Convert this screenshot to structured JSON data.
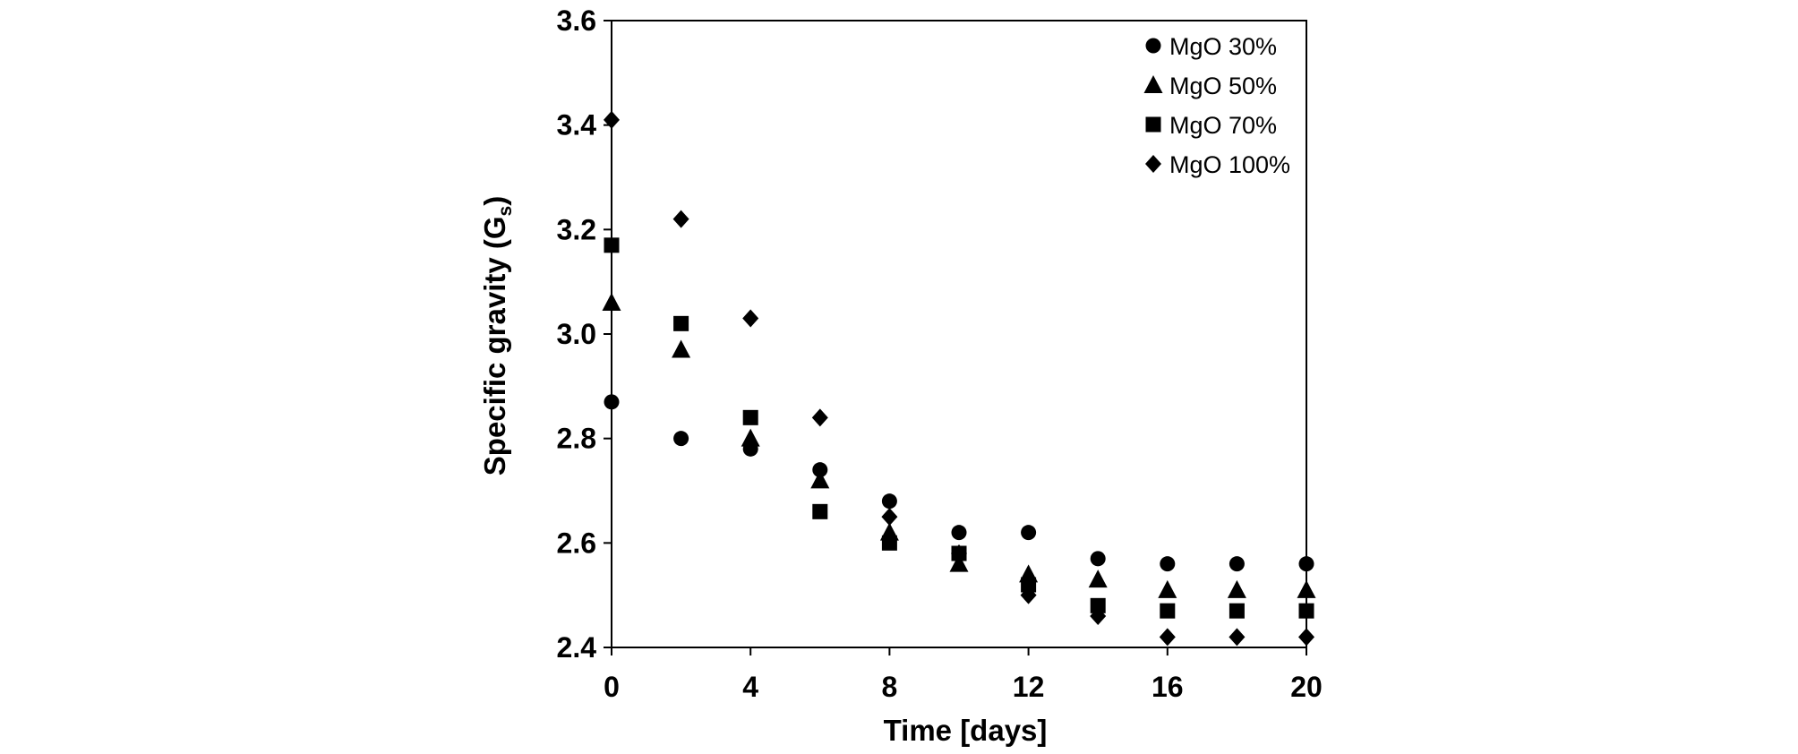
{
  "chart_data": {
    "type": "scatter",
    "title": "",
    "xlabel": "Time [days]",
    "ylabel_main": "Specific gravity (G",
    "ylabel_sub": "s",
    "ylabel_close": ")",
    "xlim": [
      0,
      20
    ],
    "ylim": [
      2.4,
      3.6
    ],
    "xticks": [
      0,
      4,
      8,
      12,
      16,
      20
    ],
    "xtick_labels": [
      "0",
      "4",
      "8",
      "12",
      "16",
      "20"
    ],
    "yticks": [
      2.4,
      2.6,
      2.8,
      3.0,
      3.2,
      3.4,
      3.6
    ],
    "ytick_labels": [
      "2.4",
      "2.6",
      "2.8",
      "3.0",
      "3.2",
      "3.4",
      "3.6"
    ],
    "grid": false,
    "legend_position": "top-right",
    "x": [
      0,
      2,
      4,
      6,
      8,
      10,
      12,
      14,
      16,
      18,
      20
    ],
    "series": [
      {
        "name": "MgO 30%",
        "marker": "circle",
        "values": [
          2.87,
          2.8,
          2.78,
          2.74,
          2.68,
          2.62,
          2.62,
          2.57,
          2.56,
          2.56,
          2.56
        ]
      },
      {
        "name": "MgO 50%",
        "marker": "triangle",
        "values": [
          3.06,
          2.97,
          2.8,
          2.72,
          2.62,
          2.56,
          2.54,
          2.53,
          2.51,
          2.51,
          2.51
        ]
      },
      {
        "name": "MgO 70%",
        "marker": "square",
        "values": [
          3.17,
          3.02,
          2.84,
          2.66,
          2.6,
          2.58,
          2.52,
          2.48,
          2.47,
          2.47,
          2.47
        ]
      },
      {
        "name": "MgO 100%",
        "marker": "diamond",
        "values": [
          3.41,
          3.22,
          3.03,
          2.84,
          2.65,
          2.58,
          2.5,
          2.46,
          2.42,
          2.42,
          2.42
        ]
      }
    ]
  },
  "colors": {
    "marker": "#000000",
    "axis": "#000000",
    "background": "#ffffff"
  }
}
